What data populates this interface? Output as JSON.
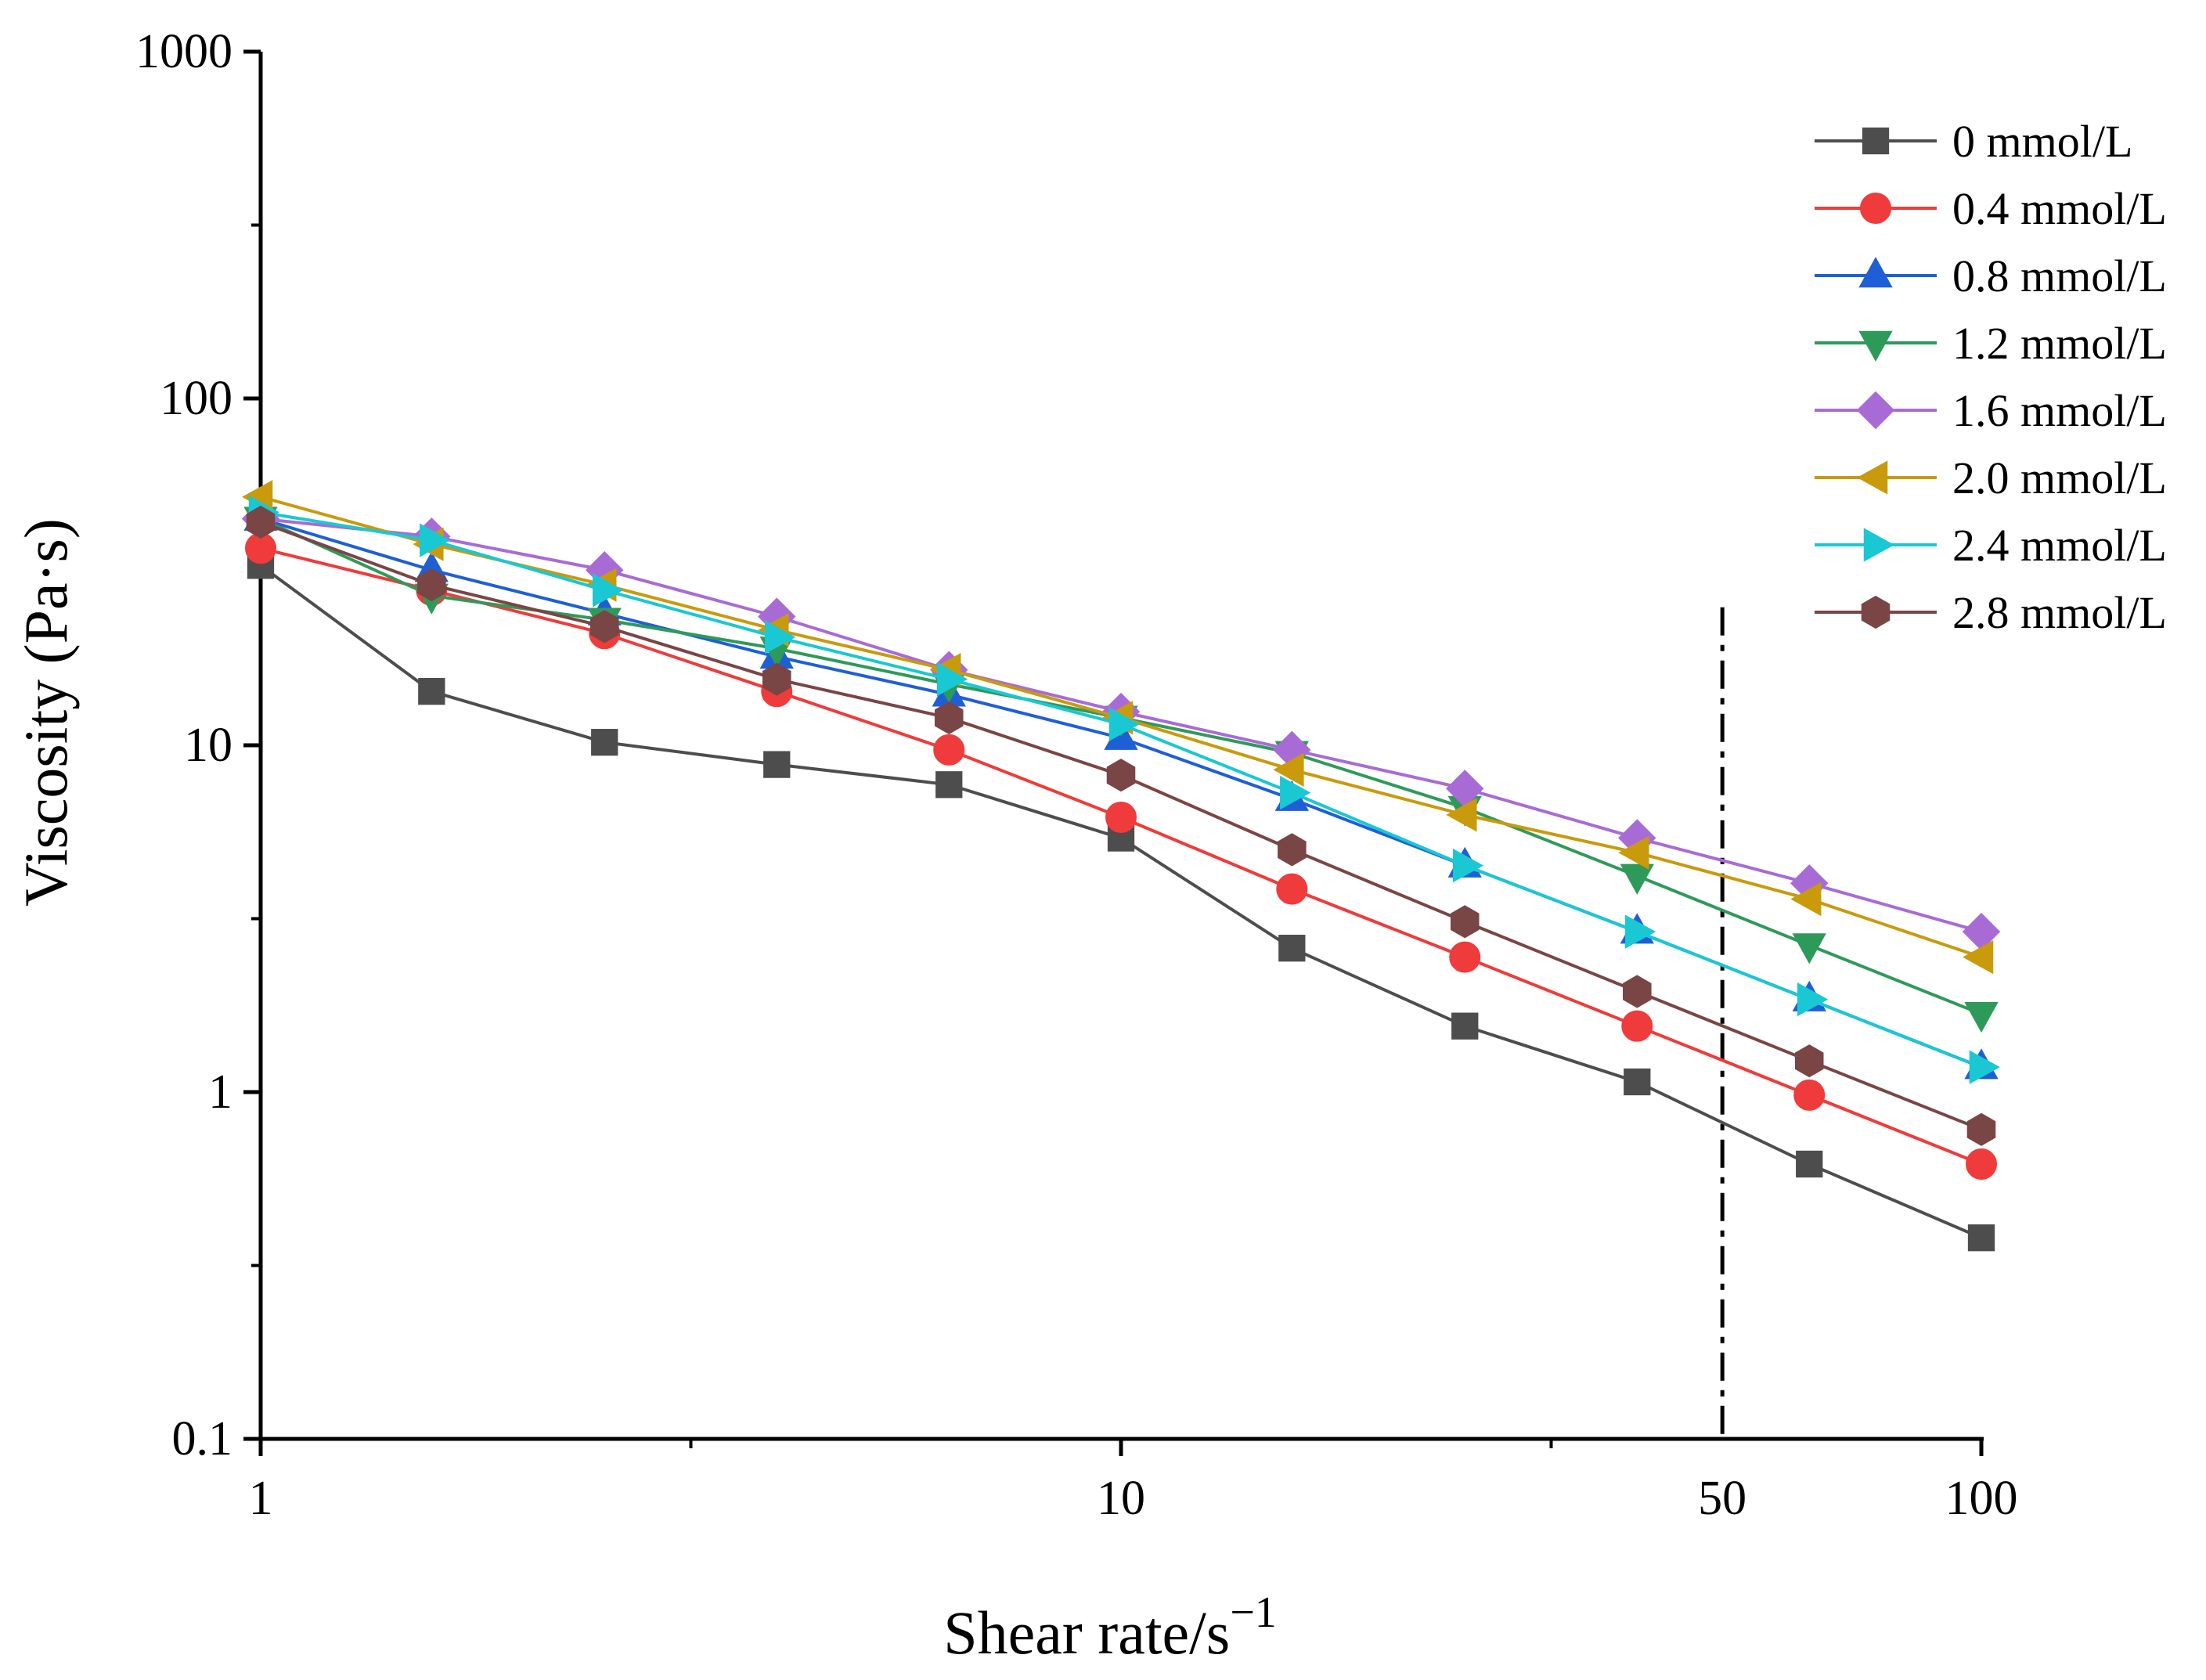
{
  "chart_data": {
    "type": "line",
    "xlabel": "Shear rate/s",
    "xlabel_superscript": "−1",
    "ylabel": "Viscosity (Pa·s)",
    "xscale": "log",
    "yscale": "log",
    "xlim": [
      1,
      100
    ],
    "ylim": [
      0.1,
      1000
    ],
    "xticks": [
      1,
      10,
      50,
      100
    ],
    "xtick_labels": [
      "1",
      "10",
      "50",
      "100"
    ],
    "yticks": [
      0.1,
      1,
      10,
      100,
      1000
    ],
    "ytick_labels": [
      "0.1",
      "1",
      "10",
      "100",
      "1000"
    ],
    "grid": false,
    "legend_position": "top-right",
    "reference_line": {
      "x": 50,
      "style": "dash-dot",
      "y_top": 25
    },
    "x": [
      1,
      1.58,
      2.51,
      3.98,
      6.31,
      10,
      15.8,
      25.1,
      39.8,
      63.1,
      100
    ],
    "series": [
      {
        "name": "0 mmol/L",
        "color": "#4d4d4d",
        "marker": "square",
        "values": [
          33,
          14.3,
          10.2,
          8.8,
          7.7,
          5.4,
          2.6,
          1.55,
          1.07,
          0.62,
          0.38
        ]
      },
      {
        "name": "0.4 mmol/L",
        "color": "#ef3b3b",
        "marker": "circle",
        "values": [
          37,
          28,
          21,
          14.3,
          9.7,
          6.2,
          3.85,
          2.45,
          1.55,
          0.98,
          0.62
        ]
      },
      {
        "name": "0.8 mmol/L",
        "color": "#1f5fd6",
        "marker": "triangle-up",
        "values": [
          45,
          32,
          24,
          18,
          14,
          10.5,
          7.0,
          4.5,
          2.9,
          1.85,
          1.18
        ]
      },
      {
        "name": "1.2 mmol/L",
        "color": "#2e9a5a",
        "marker": "triangle-down",
        "values": [
          45,
          27,
          23,
          19,
          15,
          12,
          9.5,
          6.6,
          4.2,
          2.65,
          1.68
        ]
      },
      {
        "name": "1.6 mmol/L",
        "color": "#a86bd6",
        "marker": "diamond",
        "values": [
          45,
          40,
          32,
          23.5,
          16.5,
          12.5,
          9.7,
          7.5,
          5.4,
          4.0,
          2.9
        ]
      },
      {
        "name": "2.0 mmol/L",
        "color": "#c99a0c",
        "marker": "triangle-left",
        "values": [
          52,
          38,
          29,
          21.5,
          16.5,
          12,
          8.5,
          6.3,
          4.9,
          3.6,
          2.45
        ]
      },
      {
        "name": "2.4 mmol/L",
        "color": "#19c8d2",
        "marker": "triangle-right",
        "values": [
          47,
          39,
          28,
          20.5,
          15.5,
          11.5,
          7.3,
          4.5,
          2.9,
          1.85,
          1.18
        ]
      },
      {
        "name": "2.8 mmol/L",
        "color": "#7a4545",
        "marker": "hexagon",
        "values": [
          44,
          29,
          22,
          15.5,
          12,
          8.2,
          5.0,
          3.1,
          1.95,
          1.23,
          0.78
        ]
      }
    ]
  }
}
